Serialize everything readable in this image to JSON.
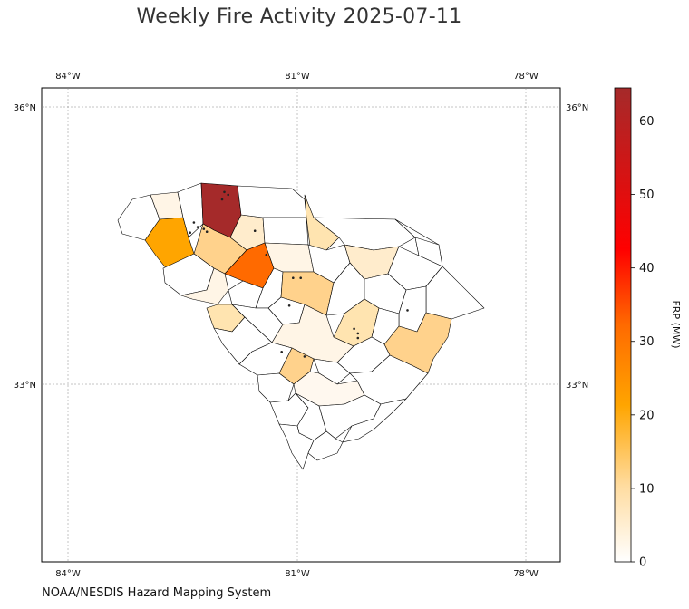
{
  "title": "Weekly Fire Activity 2025-07-11",
  "footer": "NOAA/NESDIS Hazard Mapping System",
  "colorbar": {
    "label": "FRP (MW)",
    "ticks": [
      "0",
      "10",
      "20",
      "30",
      "40",
      "50",
      "60"
    ],
    "tick_values": [
      0,
      10,
      20,
      30,
      40,
      50,
      60
    ],
    "vmin": 0,
    "vmax": 64.5,
    "colors": [
      "#ffffff",
      "#ffdca0",
      "#ffa500",
      "#ff6a00",
      "#ff0000",
      "#a52a2a"
    ]
  },
  "axes": {
    "lon_ticks": [
      "84°W",
      "81°W",
      "78°W"
    ],
    "lat_ticks": [
      "36°N",
      "33°N"
    ],
    "lon_values": [
      -84,
      -81,
      -78
    ],
    "lat_values": [
      36,
      33
    ],
    "lon_range": [
      -84.35,
      -77.55
    ],
    "lat_range": [
      31.1,
      36.2
    ],
    "grid": true
  },
  "chart_data": {
    "type": "choropleth",
    "region": "South Carolina counties",
    "values_mw": {
      "Oconee": 20,
      "Pickens": 2,
      "Greenville": 2,
      "Spartanburg": 64,
      "Cherokee": 8,
      "York": 0,
      "Chester": 0,
      "Lancaster": 8,
      "Chesterfield": 0,
      "Marlboro": 0,
      "Dillon": 0,
      "Anderson": 12,
      "Laurens": 28,
      "Union": 0,
      "Fairfield": 2,
      "Kershaw": 0,
      "Darlington": 5,
      "Marion": 0,
      "Horry": 12,
      "Abbeville": 3,
      "Greenwood": 0,
      "Newberry": 0,
      "Richland": 12,
      "Lee": 0,
      "Florence": 0,
      "McCormick": 0,
      "Saluda": 0,
      "Lexington": 5,
      "Sumter": 8,
      "Williamsburg": 0,
      "Georgetown": 0,
      "Edgefield": 5,
      "Aiken": 0,
      "Calhoun": 0,
      "Clarendon": 0,
      "Orangeburg": 5,
      "Barnwell": 0,
      "Bamberg": 12,
      "Dorchester": 2,
      "Berkeley": 0,
      "Charleston": 0,
      "Allendale": 0,
      "Hampton": 0,
      "Colleton": 0,
      "Jasper": 0,
      "Beaufort": 0
    },
    "fire_detections": [
      [
        -82.35,
        34.75
      ],
      [
        -82.3,
        34.7
      ],
      [
        -82.22,
        34.68
      ],
      [
        -82.4,
        34.64
      ],
      [
        -82.18,
        34.65
      ],
      [
        -81.95,
        35.08
      ],
      [
        -81.9,
        35.05
      ],
      [
        -81.98,
        35.0
      ],
      [
        -81.55,
        34.66
      ],
      [
        -81.4,
        34.4
      ],
      [
        -81.05,
        34.15
      ],
      [
        -80.95,
        34.15
      ],
      [
        -79.55,
        33.8
      ],
      [
        -80.2,
        33.55
      ],
      [
        -80.25,
        33.6
      ],
      [
        -80.2,
        33.5
      ],
      [
        -81.1,
        33.85
      ],
      [
        -80.9,
        33.3
      ],
      [
        -81.2,
        33.35
      ]
    ]
  }
}
